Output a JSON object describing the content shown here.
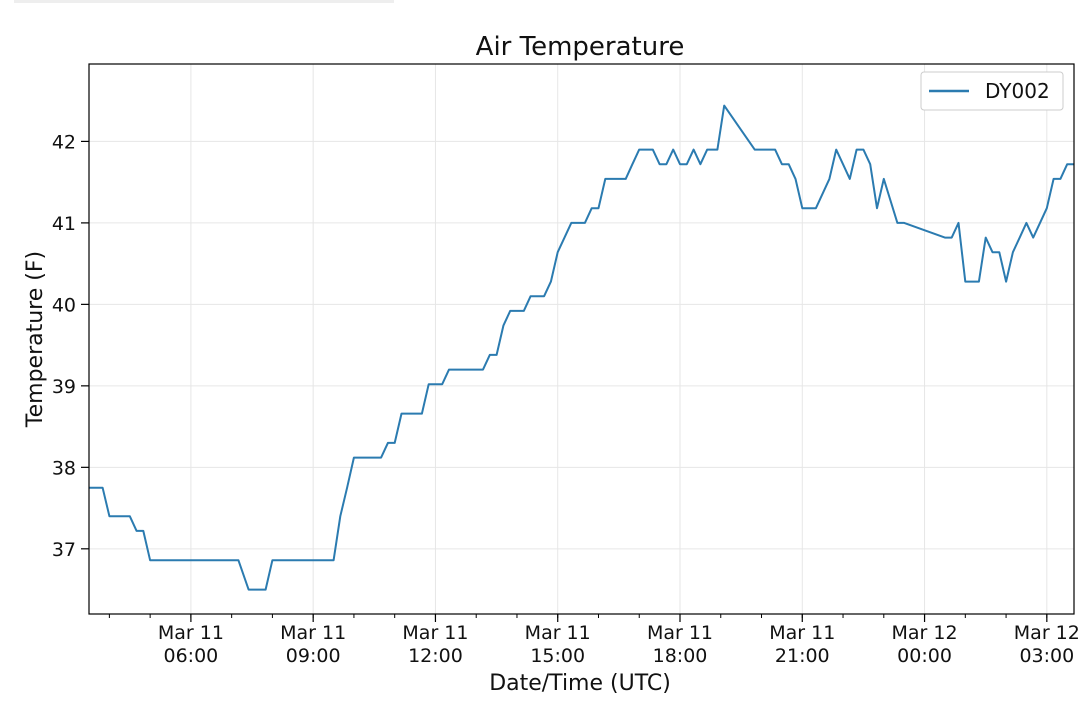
{
  "chart_data": {
    "type": "line",
    "title": "Air Temperature",
    "xlabel": "Date/Time (UTC)",
    "ylabel": "Temperature (F)",
    "x_unit": "hour",
    "xlim": [
      "2018-03-11 03:30",
      "2018-03-12 03:40"
    ],
    "ylim": [
      36.2,
      42.95
    ],
    "grid": true,
    "legend_position": "upper right",
    "line_color": "#2b7bb0",
    "x_ticks": [
      {
        "value": "2018-03-11 06:00",
        "line1": "Mar 11",
        "line2": "06:00"
      },
      {
        "value": "2018-03-11 09:00",
        "line1": "Mar 11",
        "line2": "09:00"
      },
      {
        "value": "2018-03-11 12:00",
        "line1": "Mar 11",
        "line2": "12:00"
      },
      {
        "value": "2018-03-11 15:00",
        "line1": "Mar 11",
        "line2": "15:00"
      },
      {
        "value": "2018-03-11 18:00",
        "line1": "Mar 11",
        "line2": "18:00"
      },
      {
        "value": "2018-03-11 21:00",
        "line1": "Mar 11",
        "line2": "21:00"
      },
      {
        "value": "2018-03-12 00:00",
        "line1": "Mar 12",
        "line2": "00:00"
      },
      {
        "value": "2018-03-12 03:00",
        "line1": "Mar 12",
        "line2": "03:00"
      }
    ],
    "y_ticks": [
      "37",
      "38",
      "39",
      "40",
      "41",
      "42"
    ],
    "series": [
      {
        "name": "DY002",
        "x": [
          "2018-03-11 03:30",
          "2018-03-11 03:50",
          "2018-03-11 04:00",
          "2018-03-11 04:30",
          "2018-03-11 04:40",
          "2018-03-11 04:50",
          "2018-03-11 05:00",
          "2018-03-11 05:10",
          "2018-03-11 05:15",
          "2018-03-11 07:10",
          "2018-03-11 07:25",
          "2018-03-11 07:50",
          "2018-03-11 08:00",
          "2018-03-11 09:30",
          "2018-03-11 09:40",
          "2018-03-11 09:50",
          "2018-03-11 10:00",
          "2018-03-11 10:40",
          "2018-03-11 10:50",
          "2018-03-11 11:00",
          "2018-03-11 11:10",
          "2018-03-11 11:40",
          "2018-03-11 11:50",
          "2018-03-11 12:10",
          "2018-03-11 12:20",
          "2018-03-11 13:10",
          "2018-03-11 13:20",
          "2018-03-11 13:30",
          "2018-03-11 13:40",
          "2018-03-11 13:50",
          "2018-03-11 14:10",
          "2018-03-11 14:20",
          "2018-03-11 14:40",
          "2018-03-11 14:50",
          "2018-03-11 15:00",
          "2018-03-11 15:10",
          "2018-03-11 15:20",
          "2018-03-11 15:40",
          "2018-03-11 15:50",
          "2018-03-11 16:00",
          "2018-03-11 16:10",
          "2018-03-11 16:40",
          "2018-03-11 16:50",
          "2018-03-11 17:00",
          "2018-03-11 17:20",
          "2018-03-11 17:30",
          "2018-03-11 17:40",
          "2018-03-11 17:50",
          "2018-03-11 18:00",
          "2018-03-11 18:10",
          "2018-03-11 18:20",
          "2018-03-11 18:30",
          "2018-03-11 18:40",
          "2018-03-11 18:55",
          "2018-03-11 19:05",
          "2018-03-11 19:50",
          "2018-03-11 20:00",
          "2018-03-11 20:20",
          "2018-03-11 20:30",
          "2018-03-11 20:40",
          "2018-03-11 20:50",
          "2018-03-11 21:00",
          "2018-03-11 21:20",
          "2018-03-11 21:40",
          "2018-03-11 21:50",
          "2018-03-11 22:00",
          "2018-03-11 22:10",
          "2018-03-11 22:20",
          "2018-03-11 22:30",
          "2018-03-11 22:40",
          "2018-03-11 22:50",
          "2018-03-11 23:00",
          "2018-03-11 23:20",
          "2018-03-11 23:30",
          "2018-03-12 00:30",
          "2018-03-12 00:40",
          "2018-03-12 00:50",
          "2018-03-12 01:00",
          "2018-03-12 01:20",
          "2018-03-12 01:30",
          "2018-03-12 01:40",
          "2018-03-12 01:50",
          "2018-03-12 02:00",
          "2018-03-12 02:10",
          "2018-03-12 02:20",
          "2018-03-12 02:30",
          "2018-03-12 02:40",
          "2018-03-12 02:50",
          "2018-03-12 03:00",
          "2018-03-12 03:10",
          "2018-03-12 03:20",
          "2018-03-12 03:30",
          "2018-03-12 03:40"
        ],
        "y": [
          37.75,
          37.75,
          37.4,
          37.4,
          37.22,
          37.22,
          36.86,
          36.86,
          36.86,
          36.86,
          36.5,
          36.5,
          36.86,
          36.86,
          37.4,
          37.75,
          38.12,
          38.12,
          38.3,
          38.3,
          38.66,
          38.66,
          39.02,
          39.02,
          39.2,
          39.2,
          39.38,
          39.38,
          39.74,
          39.92,
          39.92,
          40.1,
          40.1,
          40.28,
          40.64,
          40.82,
          41.0,
          41.0,
          41.18,
          41.18,
          41.54,
          41.54,
          41.72,
          41.9,
          41.9,
          41.72,
          41.72,
          41.9,
          41.72,
          41.72,
          41.9,
          41.72,
          41.9,
          41.9,
          42.44,
          41.9,
          41.9,
          41.9,
          41.72,
          41.72,
          41.54,
          41.18,
          41.18,
          41.54,
          41.9,
          41.72,
          41.54,
          41.9,
          41.9,
          41.72,
          41.18,
          41.54,
          41.0,
          41.0,
          40.82,
          40.82,
          41.0,
          40.28,
          40.28,
          40.82,
          40.64,
          40.64,
          40.28,
          40.64,
          40.82,
          41.0,
          40.82,
          41.0,
          41.18,
          41.54,
          41.54,
          41.72,
          41.72
        ]
      }
    ]
  }
}
